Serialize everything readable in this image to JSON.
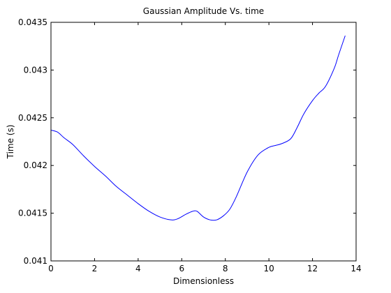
{
  "chart_data": {
    "type": "line",
    "title": "Gaussian Amplitude Vs. time",
    "xlabel": "Dimensionless",
    "ylabel": "Time (s)",
    "xlim": [
      0,
      14
    ],
    "ylim": [
      0.041,
      0.0435
    ],
    "xticks": [
      0,
      2,
      4,
      6,
      8,
      10,
      12,
      14
    ],
    "xtick_labels": [
      "0",
      "2",
      "4",
      "6",
      "8",
      "10",
      "12",
      "14"
    ],
    "yticks": [
      0.041,
      0.0415,
      0.042,
      0.0425,
      0.043,
      0.0435
    ],
    "ytick_labels": [
      "0.041",
      "0.0415",
      "0.042",
      "0.0425",
      "0.043",
      "0.0435"
    ],
    "grid": false,
    "series": [
      {
        "color": "#0000ff",
        "x": [
          0.0,
          0.3,
          0.6,
          1.0,
          1.5,
          2.0,
          2.5,
          3.0,
          3.5,
          4.0,
          4.5,
          5.0,
          5.5,
          5.8,
          6.2,
          6.5,
          6.7,
          7.0,
          7.3,
          7.6,
          7.9,
          8.2,
          8.5,
          9.0,
          9.5,
          10.0,
          10.3,
          10.6,
          11.0,
          11.3,
          11.6,
          12.0,
          12.3,
          12.6,
          13.0,
          13.2,
          13.5
        ],
        "y": [
          0.04237,
          0.04235,
          0.04229,
          0.04222,
          0.0421,
          0.04199,
          0.04189,
          0.04178,
          0.04169,
          0.0416,
          0.04152,
          0.04146,
          0.04143,
          0.04144,
          0.04149,
          0.04152,
          0.04152,
          0.04146,
          0.04143,
          0.04143,
          0.04147,
          0.04154,
          0.04167,
          0.04193,
          0.04211,
          0.04219,
          0.04221,
          0.04223,
          0.04228,
          0.0424,
          0.04254,
          0.04268,
          0.04276,
          0.04283,
          0.04302,
          0.04316,
          0.04336
        ]
      }
    ]
  }
}
